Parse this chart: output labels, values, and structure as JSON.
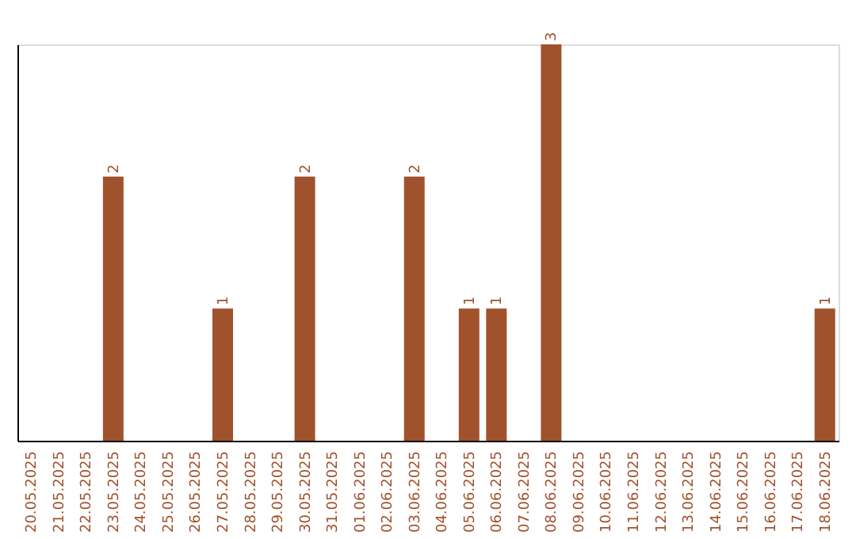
{
  "chart_data": {
    "type": "bar",
    "categories": [
      "20.05.2025",
      "21.05.2025",
      "22.05.2025",
      "23.05.2025",
      "24.05.2025",
      "25.05.2025",
      "26.05.2025",
      "27.05.2025",
      "28.05.2025",
      "29.05.2025",
      "30.05.2025",
      "31.05.2025",
      "01.06.2025",
      "02.06.2025",
      "03.06.2025",
      "04.06.2025",
      "05.06.2025",
      "06.06.2025",
      "07.06.2025",
      "08.06.2025",
      "09.06.2025",
      "10.06.2025",
      "11.06.2025",
      "12.06.2025",
      "13.06.2025",
      "14.06.2025",
      "15.06.2025",
      "16.06.2025",
      "17.06.2025",
      "18.06.2025"
    ],
    "values": [
      0,
      0,
      0,
      2,
      0,
      0,
      0,
      1,
      0,
      0,
      2,
      0,
      0,
      0,
      2,
      0,
      1,
      1,
      0,
      3,
      0,
      0,
      0,
      0,
      0,
      0,
      0,
      0,
      0,
      1
    ],
    "value_labels": [
      null,
      null,
      null,
      "2",
      null,
      null,
      null,
      "1",
      null,
      null,
      "2",
      null,
      null,
      null,
      "2",
      null,
      "1",
      "1",
      null,
      "3",
      null,
      null,
      null,
      null,
      null,
      null,
      null,
      null,
      null,
      "1"
    ],
    "color": "#a0522d",
    "tick_labels": "x"
  }
}
